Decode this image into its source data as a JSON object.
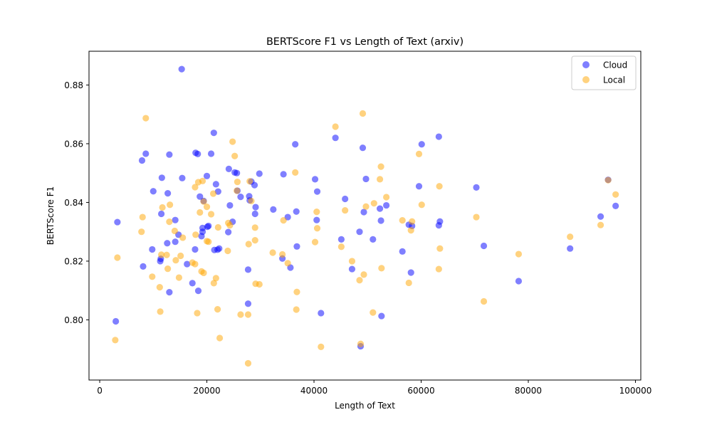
{
  "chart_data": {
    "type": "scatter",
    "title": "BERTScore F1 vs Length of Text (arxiv)",
    "xlabel": "Length of Text",
    "ylabel": "BERTScore F1",
    "xlim": [
      -2000,
      101000
    ],
    "ylim": [
      0.7795,
      0.8915
    ],
    "xticks": [
      0,
      20000,
      40000,
      60000,
      80000,
      100000
    ],
    "yticks": [
      0.8,
      0.82,
      0.84,
      0.86,
      0.88
    ],
    "ytick_labels": [
      "0.80",
      "0.82",
      "0.84",
      "0.86",
      "0.88"
    ],
    "grid": false,
    "legend": "top-right",
    "series": [
      {
        "name": "Cloud",
        "color": "#0000ff",
        "points": [
          [
            3000,
            0.7995
          ],
          [
            3300,
            0.8333
          ],
          [
            7900,
            0.8543
          ],
          [
            8100,
            0.8182
          ],
          [
            8600,
            0.8566
          ],
          [
            9800,
            0.824
          ],
          [
            10000,
            0.8438
          ],
          [
            11300,
            0.82
          ],
          [
            11400,
            0.8208
          ],
          [
            11500,
            0.8361
          ],
          [
            11600,
            0.8484
          ],
          [
            12600,
            0.8261
          ],
          [
            12700,
            0.8431
          ],
          [
            13000,
            0.8094
          ],
          [
            13000,
            0.8563
          ],
          [
            14100,
            0.834
          ],
          [
            14100,
            0.8266
          ],
          [
            14700,
            0.829
          ],
          [
            15300,
            0.8854
          ],
          [
            15400,
            0.8483
          ],
          [
            16300,
            0.819
          ],
          [
            17300,
            0.8125
          ],
          [
            17800,
            0.824
          ],
          [
            17900,
            0.8569
          ],
          [
            18300,
            0.8565
          ],
          [
            18400,
            0.8099
          ],
          [
            18700,
            0.842
          ],
          [
            19000,
            0.8285
          ],
          [
            19200,
            0.83
          ],
          [
            19200,
            0.8313
          ],
          [
            19400,
            0.8405
          ],
          [
            20000,
            0.849
          ],
          [
            20100,
            0.8317
          ],
          [
            20300,
            0.832
          ],
          [
            20800,
            0.8566
          ],
          [
            21300,
            0.8637
          ],
          [
            21400,
            0.8238
          ],
          [
            21700,
            0.8462
          ],
          [
            22000,
            0.8239
          ],
          [
            22100,
            0.8437
          ],
          [
            22300,
            0.8243
          ],
          [
            24000,
            0.8299
          ],
          [
            24100,
            0.8514
          ],
          [
            24300,
            0.839
          ],
          [
            24800,
            0.8334
          ],
          [
            25200,
            0.8502
          ],
          [
            25600,
            0.85
          ],
          [
            25700,
            0.844
          ],
          [
            26300,
            0.8419
          ],
          [
            27700,
            0.8055
          ],
          [
            27700,
            0.8171
          ],
          [
            27900,
            0.8421
          ],
          [
            28000,
            0.8407
          ],
          [
            28300,
            0.8471
          ],
          [
            28900,
            0.8459
          ],
          [
            29000,
            0.8361
          ],
          [
            29100,
            0.8384
          ],
          [
            29800,
            0.8498
          ],
          [
            32400,
            0.8376
          ],
          [
            34100,
            0.8209
          ],
          [
            34300,
            0.8496
          ],
          [
            35100,
            0.835
          ],
          [
            35600,
            0.8178
          ],
          [
            36500,
            0.8598
          ],
          [
            36700,
            0.8369
          ],
          [
            36800,
            0.825
          ],
          [
            40200,
            0.8479
          ],
          [
            40500,
            0.834
          ],
          [
            40600,
            0.8437
          ],
          [
            41300,
            0.8023
          ],
          [
            44000,
            0.862
          ],
          [
            45100,
            0.8274
          ],
          [
            45800,
            0.8412
          ],
          [
            47100,
            0.8173
          ],
          [
            48500,
            0.83
          ],
          [
            48700,
            0.791
          ],
          [
            49100,
            0.8586
          ],
          [
            49300,
            0.8367
          ],
          [
            49700,
            0.848
          ],
          [
            51000,
            0.8274
          ],
          [
            52300,
            0.8379
          ],
          [
            52500,
            0.8338
          ],
          [
            52600,
            0.8013
          ],
          [
            53500,
            0.839
          ],
          [
            56500,
            0.8233
          ],
          [
            57700,
            0.8324
          ],
          [
            58100,
            0.8161
          ],
          [
            58300,
            0.832
          ],
          [
            59600,
            0.8455
          ],
          [
            60100,
            0.8598
          ],
          [
            63300,
            0.8322
          ],
          [
            63300,
            0.8624
          ],
          [
            63500,
            0.8335
          ],
          [
            70300,
            0.8451
          ],
          [
            71700,
            0.8252
          ],
          [
            78200,
            0.8132
          ],
          [
            87800,
            0.8243
          ],
          [
            93500,
            0.8352
          ],
          [
            94900,
            0.8477
          ],
          [
            96300,
            0.8388
          ]
        ]
      },
      {
        "name": "Local",
        "color": "#ffa500",
        "points": [
          [
            2900,
            0.7931
          ],
          [
            3300,
            0.8212
          ],
          [
            7800,
            0.83
          ],
          [
            8000,
            0.835
          ],
          [
            8600,
            0.8687
          ],
          [
            9800,
            0.8147
          ],
          [
            11200,
            0.8111
          ],
          [
            11300,
            0.8028
          ],
          [
            11500,
            0.8222
          ],
          [
            11700,
            0.8383
          ],
          [
            12500,
            0.8221
          ],
          [
            12700,
            0.8174
          ],
          [
            13000,
            0.8334
          ],
          [
            13100,
            0.8392
          ],
          [
            14000,
            0.8303
          ],
          [
            14200,
            0.8203
          ],
          [
            14800,
            0.8144
          ],
          [
            15100,
            0.8218
          ],
          [
            15500,
            0.828
          ],
          [
            17300,
            0.8195
          ],
          [
            17800,
            0.8452
          ],
          [
            17800,
            0.819
          ],
          [
            17900,
            0.829
          ],
          [
            18200,
            0.8023
          ],
          [
            18400,
            0.8469
          ],
          [
            18700,
            0.8366
          ],
          [
            19000,
            0.8165
          ],
          [
            19200,
            0.8473
          ],
          [
            19400,
            0.816
          ],
          [
            19400,
            0.8403
          ],
          [
            20000,
            0.8268
          ],
          [
            20000,
            0.8385
          ],
          [
            20300,
            0.8266
          ],
          [
            20800,
            0.836
          ],
          [
            21200,
            0.843
          ],
          [
            21300,
            0.8125
          ],
          [
            21700,
            0.8142
          ],
          [
            22000,
            0.8036
          ],
          [
            22100,
            0.8315
          ],
          [
            22400,
            0.7938
          ],
          [
            23900,
            0.8235
          ],
          [
            24000,
            0.833
          ],
          [
            24300,
            0.8322
          ],
          [
            24800,
            0.8607
          ],
          [
            25200,
            0.8558
          ],
          [
            25600,
            0.844
          ],
          [
            25700,
            0.847
          ],
          [
            26300,
            0.8018
          ],
          [
            27700,
            0.7852
          ],
          [
            27700,
            0.8018
          ],
          [
            27800,
            0.8258
          ],
          [
            28000,
            0.8472
          ],
          [
            28300,
            0.8405
          ],
          [
            29000,
            0.8271
          ],
          [
            29000,
            0.8314
          ],
          [
            29100,
            0.8123
          ],
          [
            29800,
            0.8121
          ],
          [
            32300,
            0.8229
          ],
          [
            34100,
            0.8223
          ],
          [
            34300,
            0.8339
          ],
          [
            35100,
            0.8193
          ],
          [
            36500,
            0.8502
          ],
          [
            36700,
            0.8035
          ],
          [
            36800,
            0.8095
          ],
          [
            40200,
            0.8265
          ],
          [
            40500,
            0.8368
          ],
          [
            40600,
            0.8312
          ],
          [
            41300,
            0.7908
          ],
          [
            44000,
            0.8658
          ],
          [
            45100,
            0.8249
          ],
          [
            45800,
            0.8373
          ],
          [
            47100,
            0.82
          ],
          [
            48500,
            0.8135
          ],
          [
            48700,
            0.7918
          ],
          [
            49100,
            0.8703
          ],
          [
            49300,
            0.8154
          ],
          [
            49700,
            0.8386
          ],
          [
            51000,
            0.8025
          ],
          [
            51200,
            0.8397
          ],
          [
            52300,
            0.8479
          ],
          [
            52500,
            0.8522
          ],
          [
            52600,
            0.8176
          ],
          [
            53500,
            0.8418
          ],
          [
            56500,
            0.8339
          ],
          [
            57700,
            0.8126
          ],
          [
            58100,
            0.8305
          ],
          [
            58300,
            0.8335
          ],
          [
            59600,
            0.8565
          ],
          [
            60100,
            0.8392
          ],
          [
            63300,
            0.8173
          ],
          [
            63400,
            0.8455
          ],
          [
            63500,
            0.8243
          ],
          [
            70300,
            0.835
          ],
          [
            71700,
            0.8063
          ],
          [
            78200,
            0.8224
          ],
          [
            87800,
            0.8283
          ],
          [
            93500,
            0.8323
          ],
          [
            94900,
            0.8476
          ],
          [
            96300,
            0.8427
          ]
        ]
      }
    ]
  }
}
